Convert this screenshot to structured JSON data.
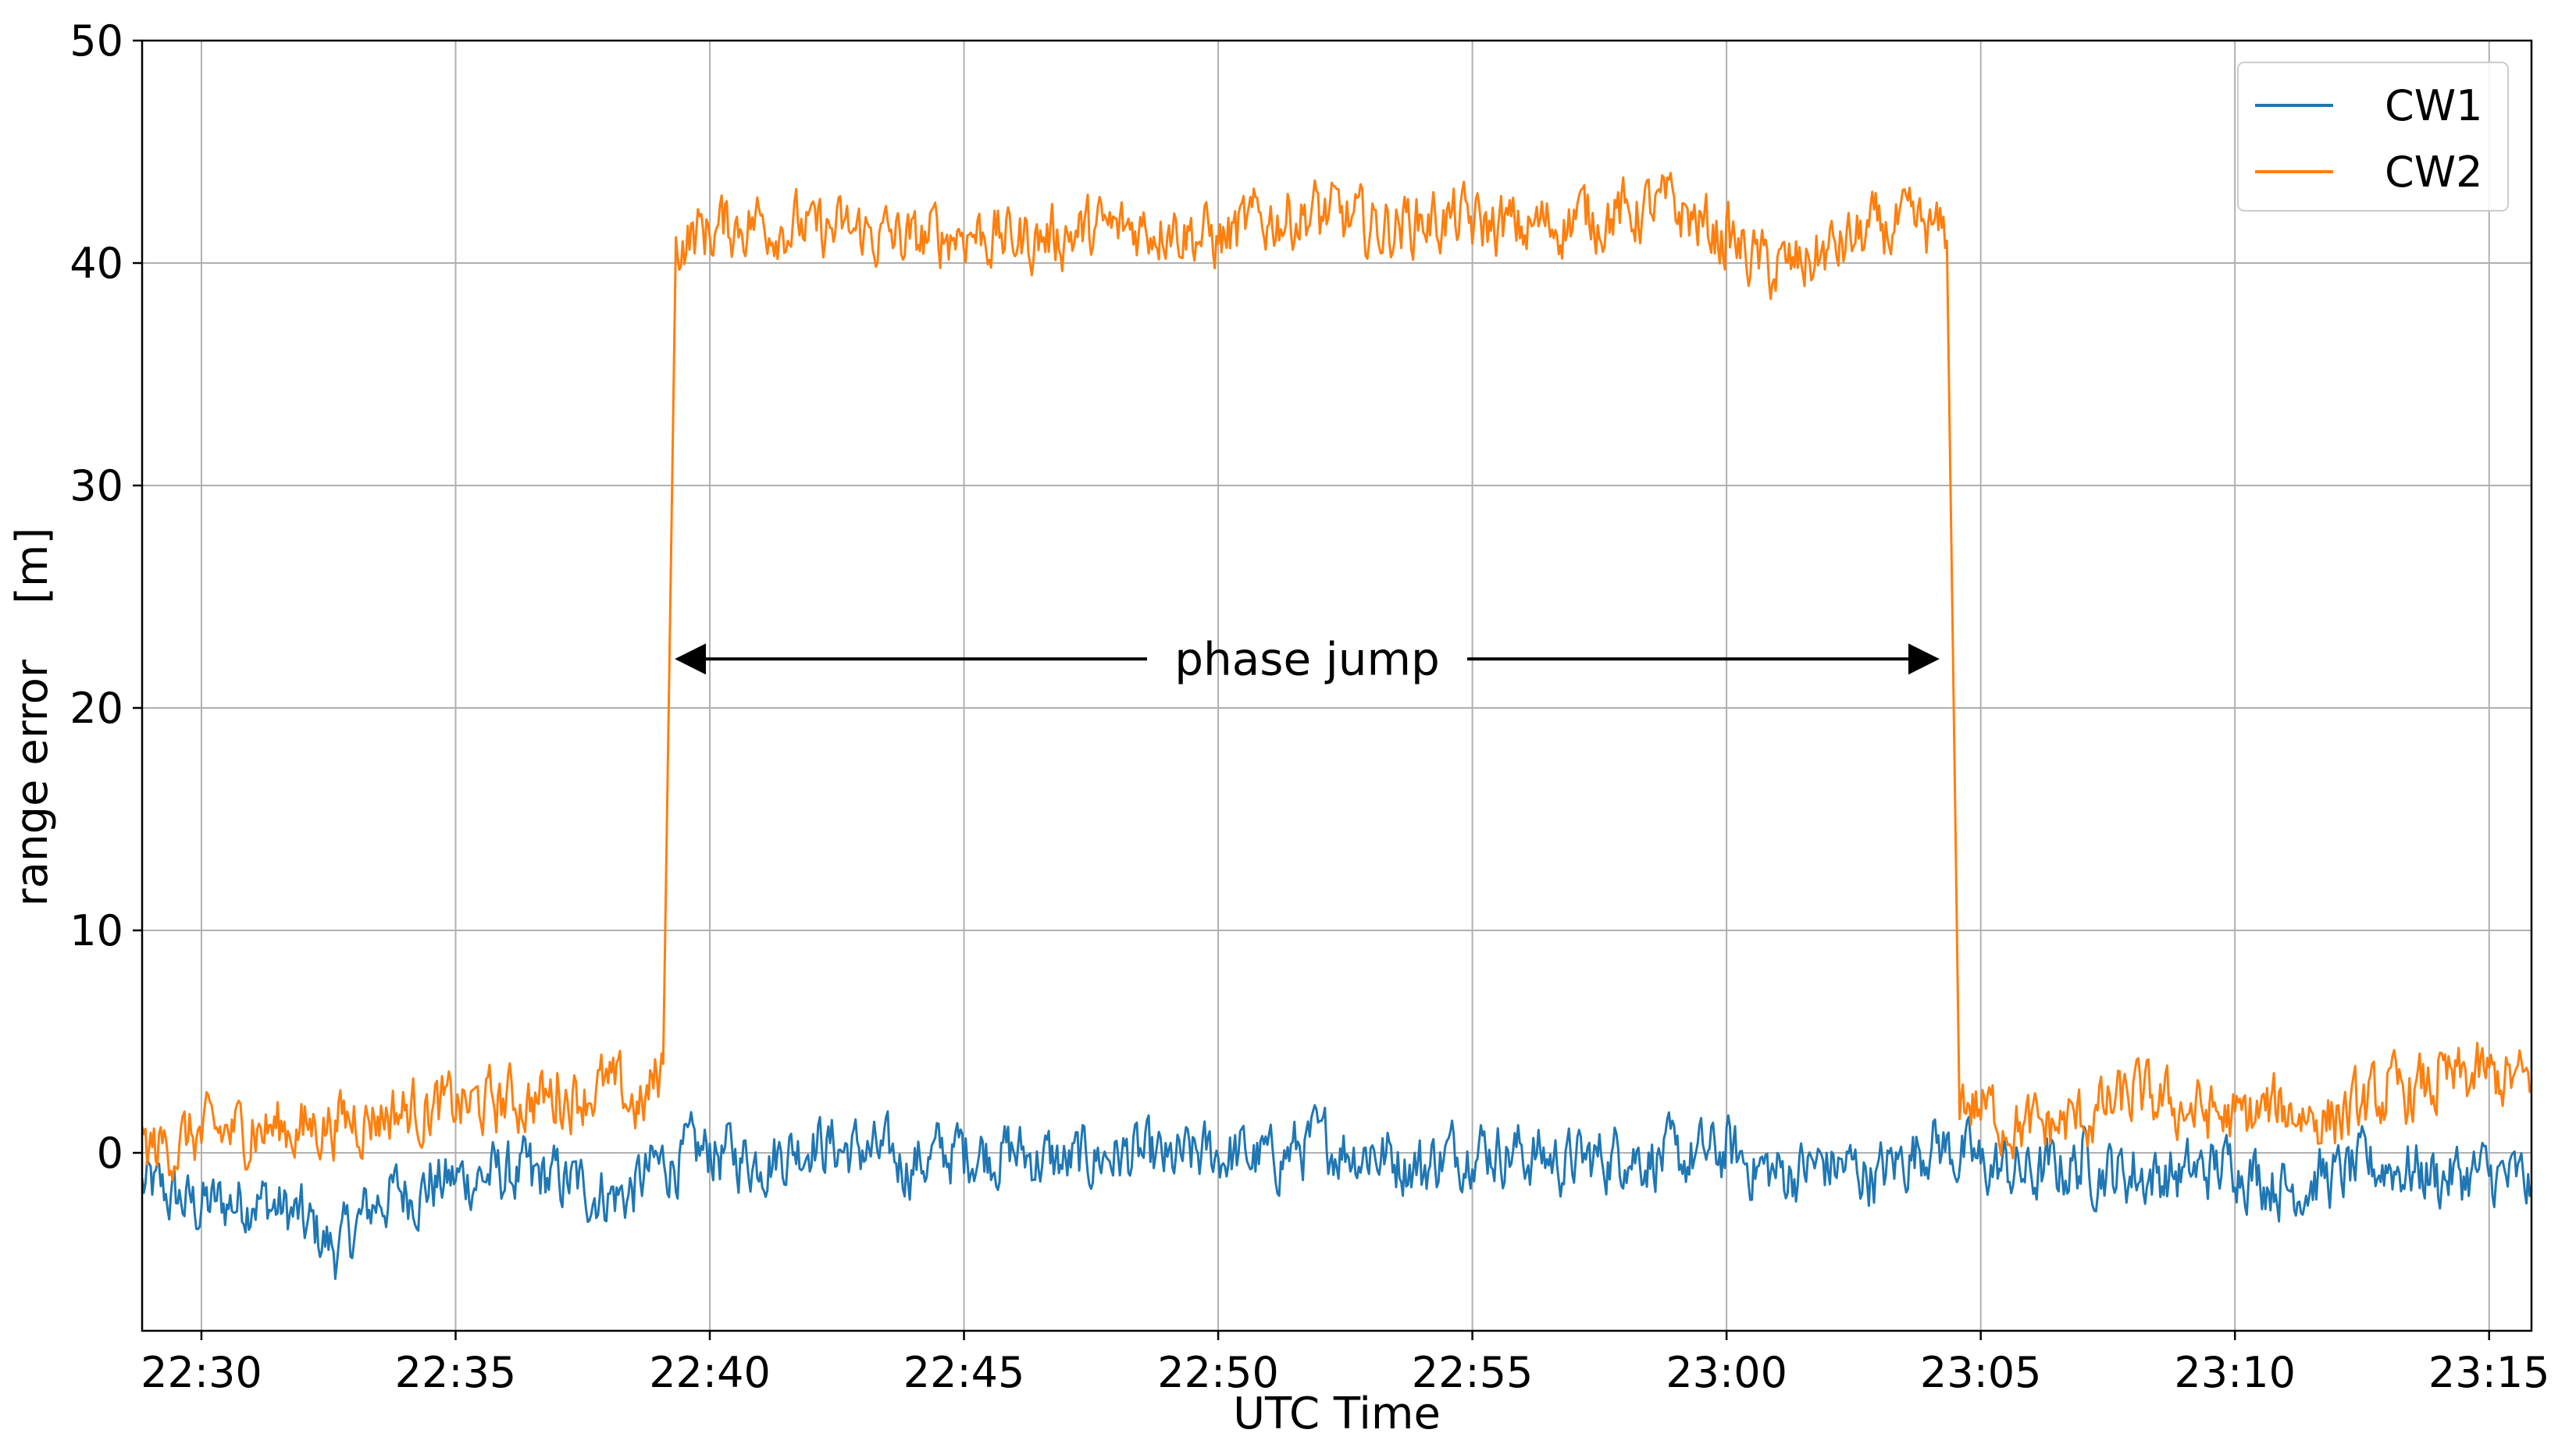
{
  "chart_data": {
    "type": "line",
    "title": "",
    "xlabel": "UTC Time",
    "ylabel": "range error    [m]",
    "x_unit": "UTC hh:mm",
    "xlim": [
      "22:28:50",
      "23:15:50"
    ],
    "ylim": [
      -8,
      50
    ],
    "x_ticks": [
      "22:30",
      "22:35",
      "22:40",
      "22:45",
      "22:50",
      "22:55",
      "23:00",
      "23:05",
      "23:10",
      "23:15"
    ],
    "y_ticks": [
      0,
      10,
      20,
      30,
      40,
      50
    ],
    "grid": true,
    "legend": {
      "position": "top-right"
    },
    "colors": {
      "CW1": "#1f77b4",
      "CW2": "#ff7f0e"
    },
    "annotation": {
      "text": "phase jump",
      "arrow_from": "22:39:15",
      "arrow_to": "23:04:15",
      "y": 22.2
    },
    "series": [
      {
        "name": "CW1",
        "color": "#1f77b4",
        "x": [
          "22:28:50",
          "22:30:00",
          "22:31:00",
          "22:32:00",
          "22:32:40",
          "22:33:30",
          "22:34:30",
          "22:35:30",
          "22:36:30",
          "22:37:30",
          "22:38:20",
          "22:39:00",
          "22:40:00",
          "22:41:00",
          "22:42:00",
          "22:43:00",
          "22:44:00",
          "22:45:00",
          "22:46:00",
          "22:47:00",
          "22:48:00",
          "22:49:00",
          "22:50:00",
          "22:51:00",
          "22:52:00",
          "22:53:00",
          "22:54:00",
          "22:55:00",
          "22:56:00",
          "22:57:00",
          "22:58:00",
          "22:59:00",
          "23:00:00",
          "23:01:00",
          "23:02:00",
          "23:03:00",
          "23:04:00",
          "23:05:00",
          "23:06:00",
          "23:07:00",
          "23:08:00",
          "23:09:00",
          "23:10:00",
          "23:11:00",
          "23:12:00",
          "23:13:00",
          "23:14:00",
          "23:15:00",
          "23:15:50"
        ],
        "y": [
          -1.5,
          -2.5,
          -2.0,
          -3.0,
          -4.5,
          -2.0,
          -1.5,
          -1.0,
          -1.0,
          -1.5,
          -2.0,
          -0.5,
          0.0,
          -0.3,
          0.5,
          0.0,
          -0.5,
          0.2,
          0.0,
          -0.5,
          0.0,
          -0.5,
          0.0,
          -0.3,
          0.5,
          0.0,
          -0.5,
          0.3,
          0.0,
          -0.5,
          0.0,
          -0.3,
          0.0,
          -1.0,
          -0.5,
          -1.0,
          0.5,
          -0.5,
          -1.0,
          -0.5,
          -1.0,
          -1.0,
          -0.5,
          -1.5,
          -1.0,
          -0.5,
          -1.0,
          -1.0,
          -1.5
        ]
      },
      {
        "name": "CW2",
        "color": "#ff7f0e",
        "x": [
          "22:28:50",
          "22:30:00",
          "22:31:00",
          "22:32:00",
          "22:33:00",
          "22:34:00",
          "22:35:00",
          "22:36:00",
          "22:37:00",
          "22:38:00",
          "22:38:40",
          "22:39:05",
          "22:39:20",
          "22:40:00",
          "22:41:00",
          "22:42:00",
          "22:43:00",
          "22:44:00",
          "22:45:00",
          "22:46:00",
          "22:47:00",
          "22:48:00",
          "22:49:00",
          "22:50:00",
          "22:51:00",
          "22:52:00",
          "22:53:00",
          "22:54:00",
          "22:55:00",
          "22:56:00",
          "22:57:00",
          "22:58:00",
          "22:59:00",
          "23:00:00",
          "23:01:00",
          "23:02:00",
          "23:03:00",
          "23:04:00",
          "23:04:20",
          "23:04:35",
          "23:05:00",
          "23:06:00",
          "23:07:00",
          "23:08:00",
          "23:09:00",
          "23:10:00",
          "23:11:00",
          "23:12:00",
          "23:13:00",
          "23:14:00",
          "23:15:00",
          "23:15:50"
        ],
        "y": [
          0.0,
          0.8,
          1.0,
          1.2,
          1.5,
          2.0,
          2.0,
          2.3,
          2.5,
          3.0,
          2.0,
          4.0,
          41.0,
          41.5,
          42.0,
          41.5,
          41.3,
          41.0,
          41.5,
          41.0,
          41.3,
          41.5,
          41.8,
          41.0,
          42.0,
          42.3,
          41.5,
          42.0,
          41.8,
          41.5,
          42.0,
          42.3,
          42.5,
          41.0,
          39.5,
          40.5,
          41.5,
          41.5,
          41.0,
          2.5,
          2.0,
          1.0,
          1.5,
          2.5,
          2.0,
          1.5,
          2.0,
          1.5,
          2.5,
          3.0,
          3.5,
          3.0
        ]
      }
    ]
  }
}
